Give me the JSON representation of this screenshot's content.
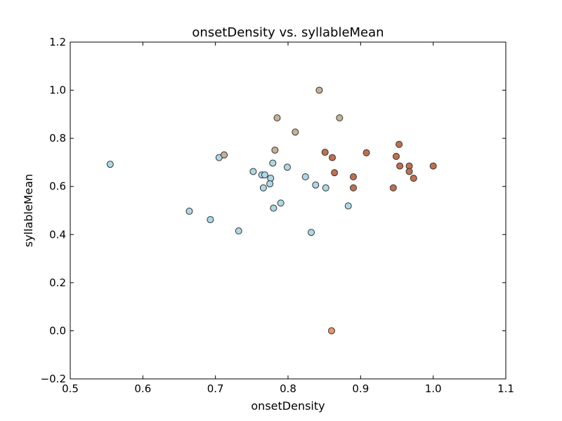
{
  "chart_data": {
    "type": "scatter",
    "title": "onsetDensity vs. syllableMean",
    "xlabel": "onsetDensity",
    "ylabel": "syllableMean",
    "xlim": [
      0.5,
      1.1
    ],
    "ylim": [
      -0.2,
      1.2
    ],
    "xticks": [
      "0.5",
      "0.6",
      "0.7",
      "0.8",
      "0.9",
      "1.0",
      "1.1"
    ],
    "yticks": [
      "−0.2",
      "0.0",
      "0.2",
      "0.4",
      "0.6",
      "0.8",
      "1.0",
      "1.2"
    ],
    "grid": false,
    "colors": {
      "light_blue": "#add8e6",
      "tan": "#c9b094",
      "rust": "#c0704f",
      "orange": "#e8946a",
      "edge": "#333333"
    },
    "points": [
      {
        "x": 0.555,
        "y": 0.692,
        "color": "light_blue"
      },
      {
        "x": 0.664,
        "y": 0.497,
        "color": "light_blue"
      },
      {
        "x": 0.693,
        "y": 0.462,
        "color": "light_blue"
      },
      {
        "x": 0.705,
        "y": 0.72,
        "color": "light_blue"
      },
      {
        "x": 0.712,
        "y": 0.731,
        "color": "tan"
      },
      {
        "x": 0.732,
        "y": 0.415,
        "color": "light_blue"
      },
      {
        "x": 0.752,
        "y": 0.662,
        "color": "light_blue"
      },
      {
        "x": 0.764,
        "y": 0.648,
        "color": "light_blue"
      },
      {
        "x": 0.768,
        "y": 0.648,
        "color": "light_blue"
      },
      {
        "x": 0.766,
        "y": 0.594,
        "color": "light_blue"
      },
      {
        "x": 0.776,
        "y": 0.634,
        "color": "light_blue"
      },
      {
        "x": 0.775,
        "y": 0.611,
        "color": "light_blue"
      },
      {
        "x": 0.779,
        "y": 0.697,
        "color": "light_blue"
      },
      {
        "x": 0.78,
        "y": 0.51,
        "color": "light_blue"
      },
      {
        "x": 0.782,
        "y": 0.751,
        "color": "tan"
      },
      {
        "x": 0.785,
        "y": 0.885,
        "color": "tan"
      },
      {
        "x": 0.79,
        "y": 0.531,
        "color": "light_blue"
      },
      {
        "x": 0.799,
        "y": 0.68,
        "color": "light_blue"
      },
      {
        "x": 0.81,
        "y": 0.826,
        "color": "tan"
      },
      {
        "x": 0.824,
        "y": 0.64,
        "color": "light_blue"
      },
      {
        "x": 0.832,
        "y": 0.409,
        "color": "light_blue"
      },
      {
        "x": 0.838,
        "y": 0.606,
        "color": "light_blue"
      },
      {
        "x": 0.843,
        "y": 1.0,
        "color": "tan"
      },
      {
        "x": 0.851,
        "y": 0.742,
        "color": "rust"
      },
      {
        "x": 0.852,
        "y": 0.594,
        "color": "light_blue"
      },
      {
        "x": 0.86,
        "y": 0.0,
        "color": "orange"
      },
      {
        "x": 0.861,
        "y": 0.72,
        "color": "rust"
      },
      {
        "x": 0.864,
        "y": 0.657,
        "color": "rust"
      },
      {
        "x": 0.871,
        "y": 0.885,
        "color": "tan"
      },
      {
        "x": 0.883,
        "y": 0.519,
        "color": "light_blue"
      },
      {
        "x": 0.89,
        "y": 0.64,
        "color": "rust"
      },
      {
        "x": 0.89,
        "y": 0.594,
        "color": "rust"
      },
      {
        "x": 0.908,
        "y": 0.74,
        "color": "rust"
      },
      {
        "x": 0.945,
        "y": 0.594,
        "color": "rust"
      },
      {
        "x": 0.949,
        "y": 0.725,
        "color": "rust"
      },
      {
        "x": 0.953,
        "y": 0.775,
        "color": "rust"
      },
      {
        "x": 0.954,
        "y": 0.685,
        "color": "rust"
      },
      {
        "x": 0.967,
        "y": 0.685,
        "color": "rust"
      },
      {
        "x": 0.967,
        "y": 0.662,
        "color": "rust"
      },
      {
        "x": 0.973,
        "y": 0.634,
        "color": "rust"
      },
      {
        "x": 1.0,
        "y": 0.685,
        "color": "rust"
      }
    ]
  }
}
